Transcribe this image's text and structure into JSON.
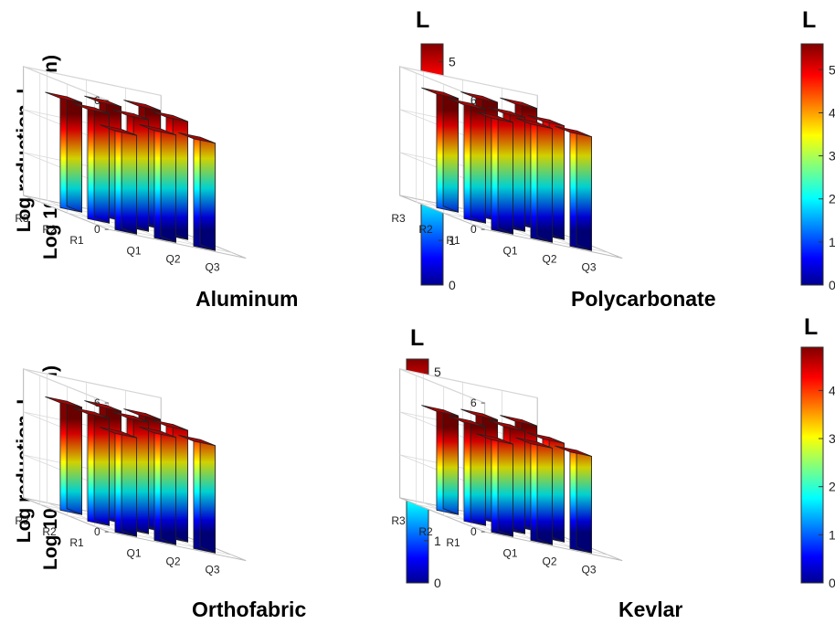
{
  "ylabel": {
    "line1": "Log reduction, L",
    "line2": "Log 10 (CFUs/coupon)"
  },
  "colormap": "jet",
  "chart_data": [
    {
      "type": "bar3d",
      "title": "Aluminum",
      "colorbar_title": "L",
      "colorbar_ticks": [
        "0",
        "1",
        "2",
        "3",
        "4",
        "5"
      ],
      "colorbar_range": [
        0,
        5.4
      ],
      "zlim": [
        0,
        6
      ],
      "zticks": [
        "0",
        "2",
        "4",
        "6"
      ],
      "x_categories": [
        "Q1",
        "Q2",
        "Q3"
      ],
      "y_categories": [
        "R1",
        "R2",
        "R3"
      ],
      "grid": true,
      "values": [
        [
          4.6,
          5.0,
          5.0
        ],
        [
          5.1,
          5.2,
          5.5
        ],
        [
          5.1,
          5.3,
          5.5
        ]
      ]
    },
    {
      "type": "bar3d",
      "title": "Polycarbonate",
      "colorbar_title": "L",
      "colorbar_ticks": [
        "0",
        "1",
        "2",
        "3",
        "4",
        "5"
      ],
      "colorbar_range": [
        0,
        5.6
      ],
      "zlim": [
        0,
        6
      ],
      "zticks": [
        "0",
        "2",
        "4",
        "6"
      ],
      "x_categories": [
        "Q1",
        "Q2",
        "Q3"
      ],
      "y_categories": [
        "R1",
        "R2",
        "R3"
      ],
      "grid": true,
      "values": [
        [
          5.2,
          5.3,
          5.3
        ],
        [
          5.3,
          5.3,
          5.3
        ],
        [
          5.3,
          5.5,
          5.6
        ]
      ]
    },
    {
      "type": "bar3d",
      "title": "Orthofabric",
      "colorbar_title": "L",
      "colorbar_ticks": [
        "0",
        "1",
        "2",
        "3",
        "4",
        "5"
      ],
      "colorbar_range": [
        0,
        5.3
      ],
      "zlim": [
        0,
        6
      ],
      "zticks": [
        "0",
        "2",
        "4",
        "6"
      ],
      "x_categories": [
        "Q1",
        "Q2",
        "Q3"
      ],
      "y_categories": [
        "R1",
        "R2",
        "R3"
      ],
      "grid": true,
      "values": [
        [
          4.6,
          5.0,
          5.0
        ],
        [
          5.0,
          5.2,
          5.2
        ],
        [
          5.0,
          5.2,
          5.2
        ]
      ]
    },
    {
      "type": "bar3d",
      "title": "Kevlar",
      "colorbar_title": "L",
      "colorbar_ticks": [
        "0",
        "1",
        "2",
        "3",
        "4"
      ],
      "colorbar_range": [
        0,
        4.9
      ],
      "zlim": [
        0,
        6
      ],
      "zticks": [
        "0",
        "2",
        "4",
        "6"
      ],
      "x_categories": [
        "Q1",
        "Q2",
        "Q3"
      ],
      "y_categories": [
        "R1",
        "R2",
        "R3"
      ],
      "grid": true,
      "values": [
        [
          4.3,
          4.5,
          4.5
        ],
        [
          4.6,
          4.8,
          4.6
        ],
        [
          4.6,
          4.8,
          4.9
        ]
      ]
    }
  ]
}
